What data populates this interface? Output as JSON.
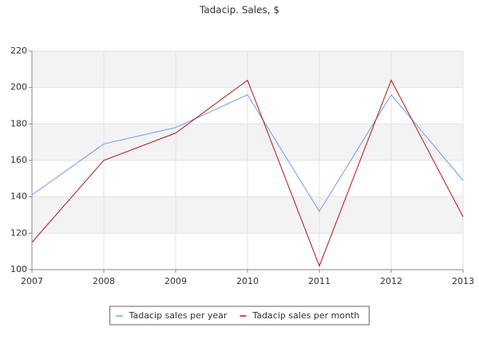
{
  "chart_data": {
    "type": "line",
    "title": "Tadacip. Sales, $",
    "x": [
      2007,
      2008,
      2009,
      2010,
      2011,
      2012,
      2013
    ],
    "xlim": [
      2007,
      2013
    ],
    "xticks": [
      2007,
      2008,
      2009,
      2010,
      2011,
      2012,
      2013
    ],
    "ylim": [
      100,
      220
    ],
    "yticks": [
      100,
      120,
      140,
      160,
      180,
      200,
      220
    ],
    "grid": true,
    "legend": "bottom",
    "series": [
      {
        "name": "Tadacip sales per year",
        "color": "#6f9be8",
        "values": [
          141,
          169,
          178,
          196,
          132,
          196,
          149
        ]
      },
      {
        "name": "Tadacip sales per month",
        "color": "#b01818",
        "values": [
          115,
          160,
          175,
          204,
          102,
          204,
          129
        ]
      }
    ]
  }
}
